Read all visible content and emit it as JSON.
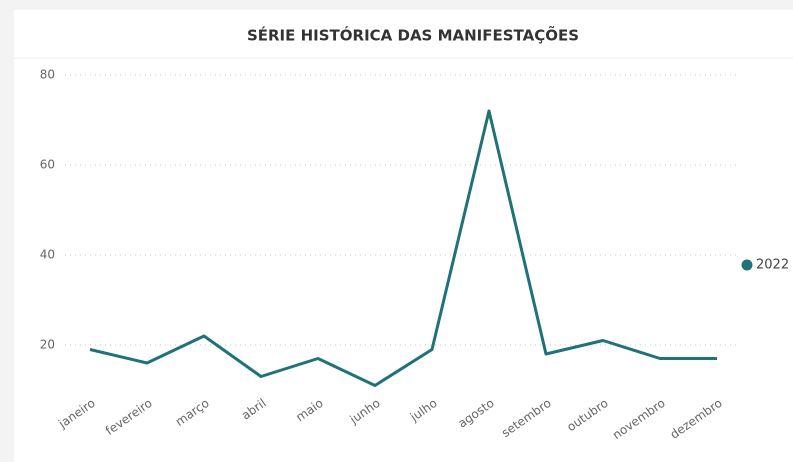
{
  "chart_data": {
    "type": "line",
    "title": "SÉRIE HISTÓRICA DAS MANIFESTAÇÕES",
    "categories": [
      "janeiro",
      "fevereiro",
      "março",
      "abril",
      "maio",
      "junho",
      "julho",
      "agosto",
      "setembro",
      "outubro",
      "novembro",
      "dezembro"
    ],
    "series": [
      {
        "name": "2022",
        "color": "#1f7278",
        "values": [
          19,
          16,
          22,
          13,
          17,
          11,
          19,
          72,
          18,
          21,
          17,
          17
        ]
      }
    ],
    "ylim": [
      10,
      80
    ],
    "yticks": [
      20,
      40,
      60,
      80
    ],
    "grid": true,
    "legend": "right"
  }
}
